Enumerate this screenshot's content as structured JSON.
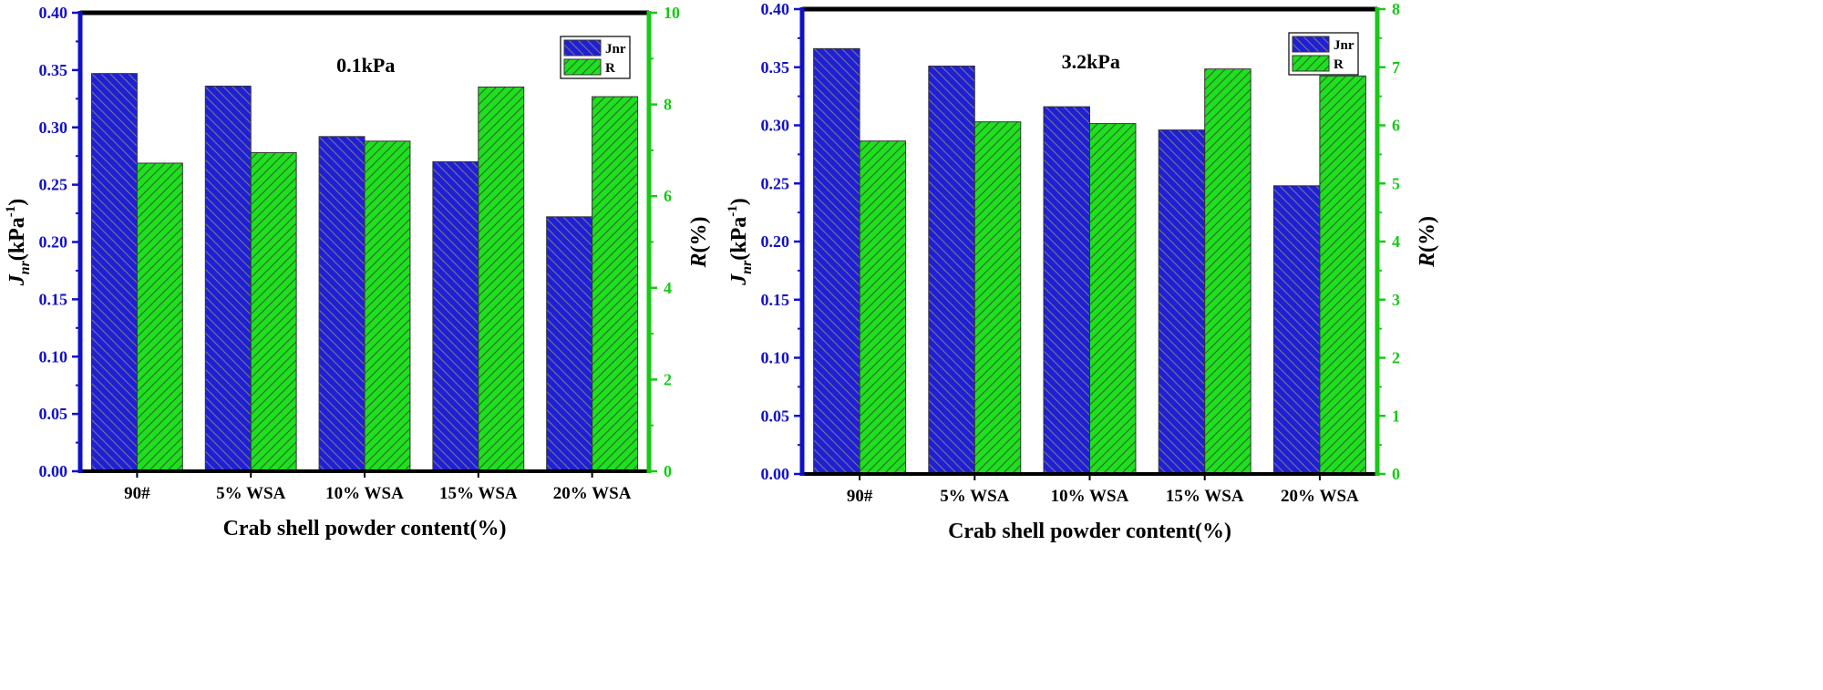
{
  "chart_data": [
    {
      "type": "bar",
      "title": "0.1kPa",
      "xlabel": "Crab shell powder content(%)",
      "ylabel_left": {
        "main": "J",
        "sub": "nr",
        "rest": "(kPa",
        "sup": "-1",
        "end": ")"
      },
      "ylabel_right": {
        "italic": "R",
        "rest": "(%)"
      },
      "categories": [
        "90#",
        "5% WSA",
        "10% WSA",
        "15% WSA",
        "20% WSA"
      ],
      "ylim_left": [
        0,
        0.4
      ],
      "ylim_right": [
        0,
        10
      ],
      "yticks_left": [
        "0.00",
        "0.05",
        "0.10",
        "0.15",
        "0.20",
        "0.25",
        "0.30",
        "0.35",
        "0.40"
      ],
      "yticks_right": [
        "0",
        "2",
        "4",
        "6",
        "8",
        "10"
      ],
      "legend_position": "top-right",
      "series": [
        {
          "name": "Jnr",
          "axis": "left",
          "color": "#1f1fd6",
          "values": [
            0.347,
            0.336,
            0.292,
            0.27,
            0.222
          ]
        },
        {
          "name": "R",
          "axis": "right",
          "color": "#1ee01e",
          "values": [
            6.72,
            6.95,
            7.2,
            8.38,
            8.17
          ]
        }
      ]
    },
    {
      "type": "bar",
      "title": "3.2kPa",
      "xlabel": "Crab shell powder content(%)",
      "ylabel_left": {
        "main": "J",
        "sub": "nr",
        "rest": "(kPa",
        "sup": "-1",
        "end": ")"
      },
      "ylabel_right": {
        "italic": "R",
        "rest": "(%)"
      },
      "categories": [
        "90#",
        "5% WSA",
        "10% WSA",
        "15% WSA",
        "20% WSA"
      ],
      "ylim_left": [
        0,
        0.4
      ],
      "ylim_right": [
        0,
        8
      ],
      "yticks_left": [
        "0.00",
        "0.05",
        "0.10",
        "0.15",
        "0.20",
        "0.25",
        "0.30",
        "0.35",
        "0.40"
      ],
      "yticks_right": [
        "0",
        "1",
        "2",
        "3",
        "4",
        "5",
        "6",
        "7",
        "8"
      ],
      "legend_position": "top-right",
      "series": [
        {
          "name": "Jnr",
          "axis": "left",
          "color": "#1f1fd6",
          "values": [
            0.366,
            0.351,
            0.316,
            0.296,
            0.248
          ]
        },
        {
          "name": "R",
          "axis": "right",
          "color": "#1ee01e",
          "values": [
            5.73,
            6.06,
            6.03,
            6.97,
            6.85
          ]
        }
      ]
    }
  ],
  "colors": {
    "left_axis": "#1010c8",
    "right_axis": "#18c818",
    "frame": "#000000"
  }
}
